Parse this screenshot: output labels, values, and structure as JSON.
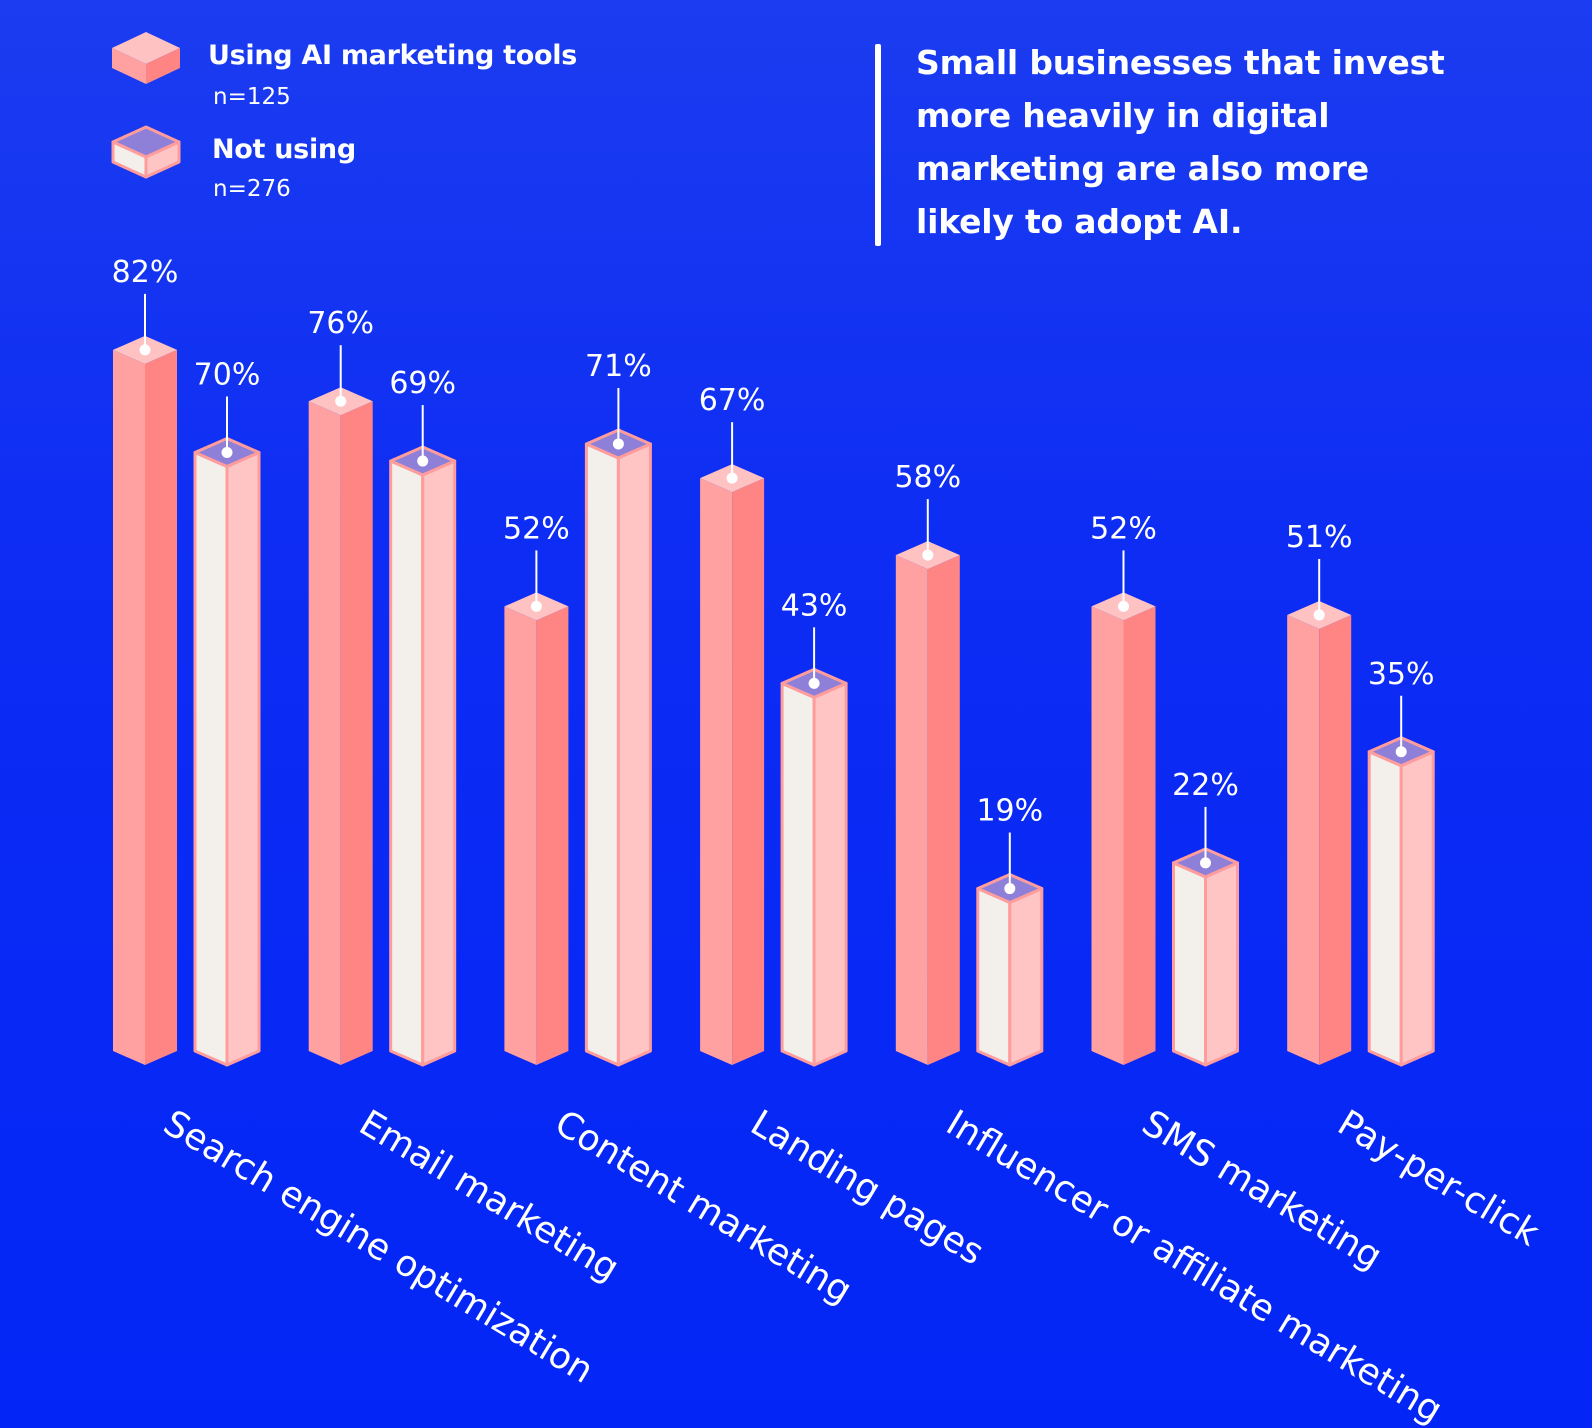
{
  "legend": {
    "items": [
      {
        "label": "Using AI marketing tools",
        "n": "n=125"
      },
      {
        "label": "Not using",
        "n": "n=276"
      }
    ]
  },
  "headline": "Small businesses that invest more heavily in digital marketing are also more likely to adopt AI.",
  "colors": {
    "background": "#0326f6",
    "using_front": "#ffa1a1",
    "using_side": "#ff8585",
    "using_top": "#ffc2c2",
    "not_front": "#f3f0ec",
    "not_side": "#ffc4c4",
    "not_top": "#8e7fd8",
    "not_outline": "#ff9c9c",
    "text": "#ffffff"
  },
  "chart_data": {
    "type": "bar",
    "categories": [
      "Search engine optimization",
      "Email marketing",
      "Content marketing",
      "Landing pages",
      "Influencer or affiliate marketing",
      "SMS marketing",
      "Pay-per-click"
    ],
    "series": [
      {
        "name": "Using AI marketing tools",
        "values": [
          82,
          76,
          52,
          67,
          58,
          52,
          51
        ],
        "labels": [
          "82%",
          "76%",
          "52%",
          "67%",
          "58%",
          "52%",
          "51%"
        ]
      },
      {
        "name": "Not using",
        "values": [
          70,
          69,
          71,
          43,
          19,
          22,
          35
        ],
        "labels": [
          "70%",
          "69%",
          "71%",
          "43%",
          "19%",
          "22%",
          "35%"
        ]
      }
    ],
    "unit": "%",
    "ylim": [
      0,
      100
    ],
    "style": "isometric 3D bars",
    "grid": false,
    "legend_position": "top-left"
  }
}
